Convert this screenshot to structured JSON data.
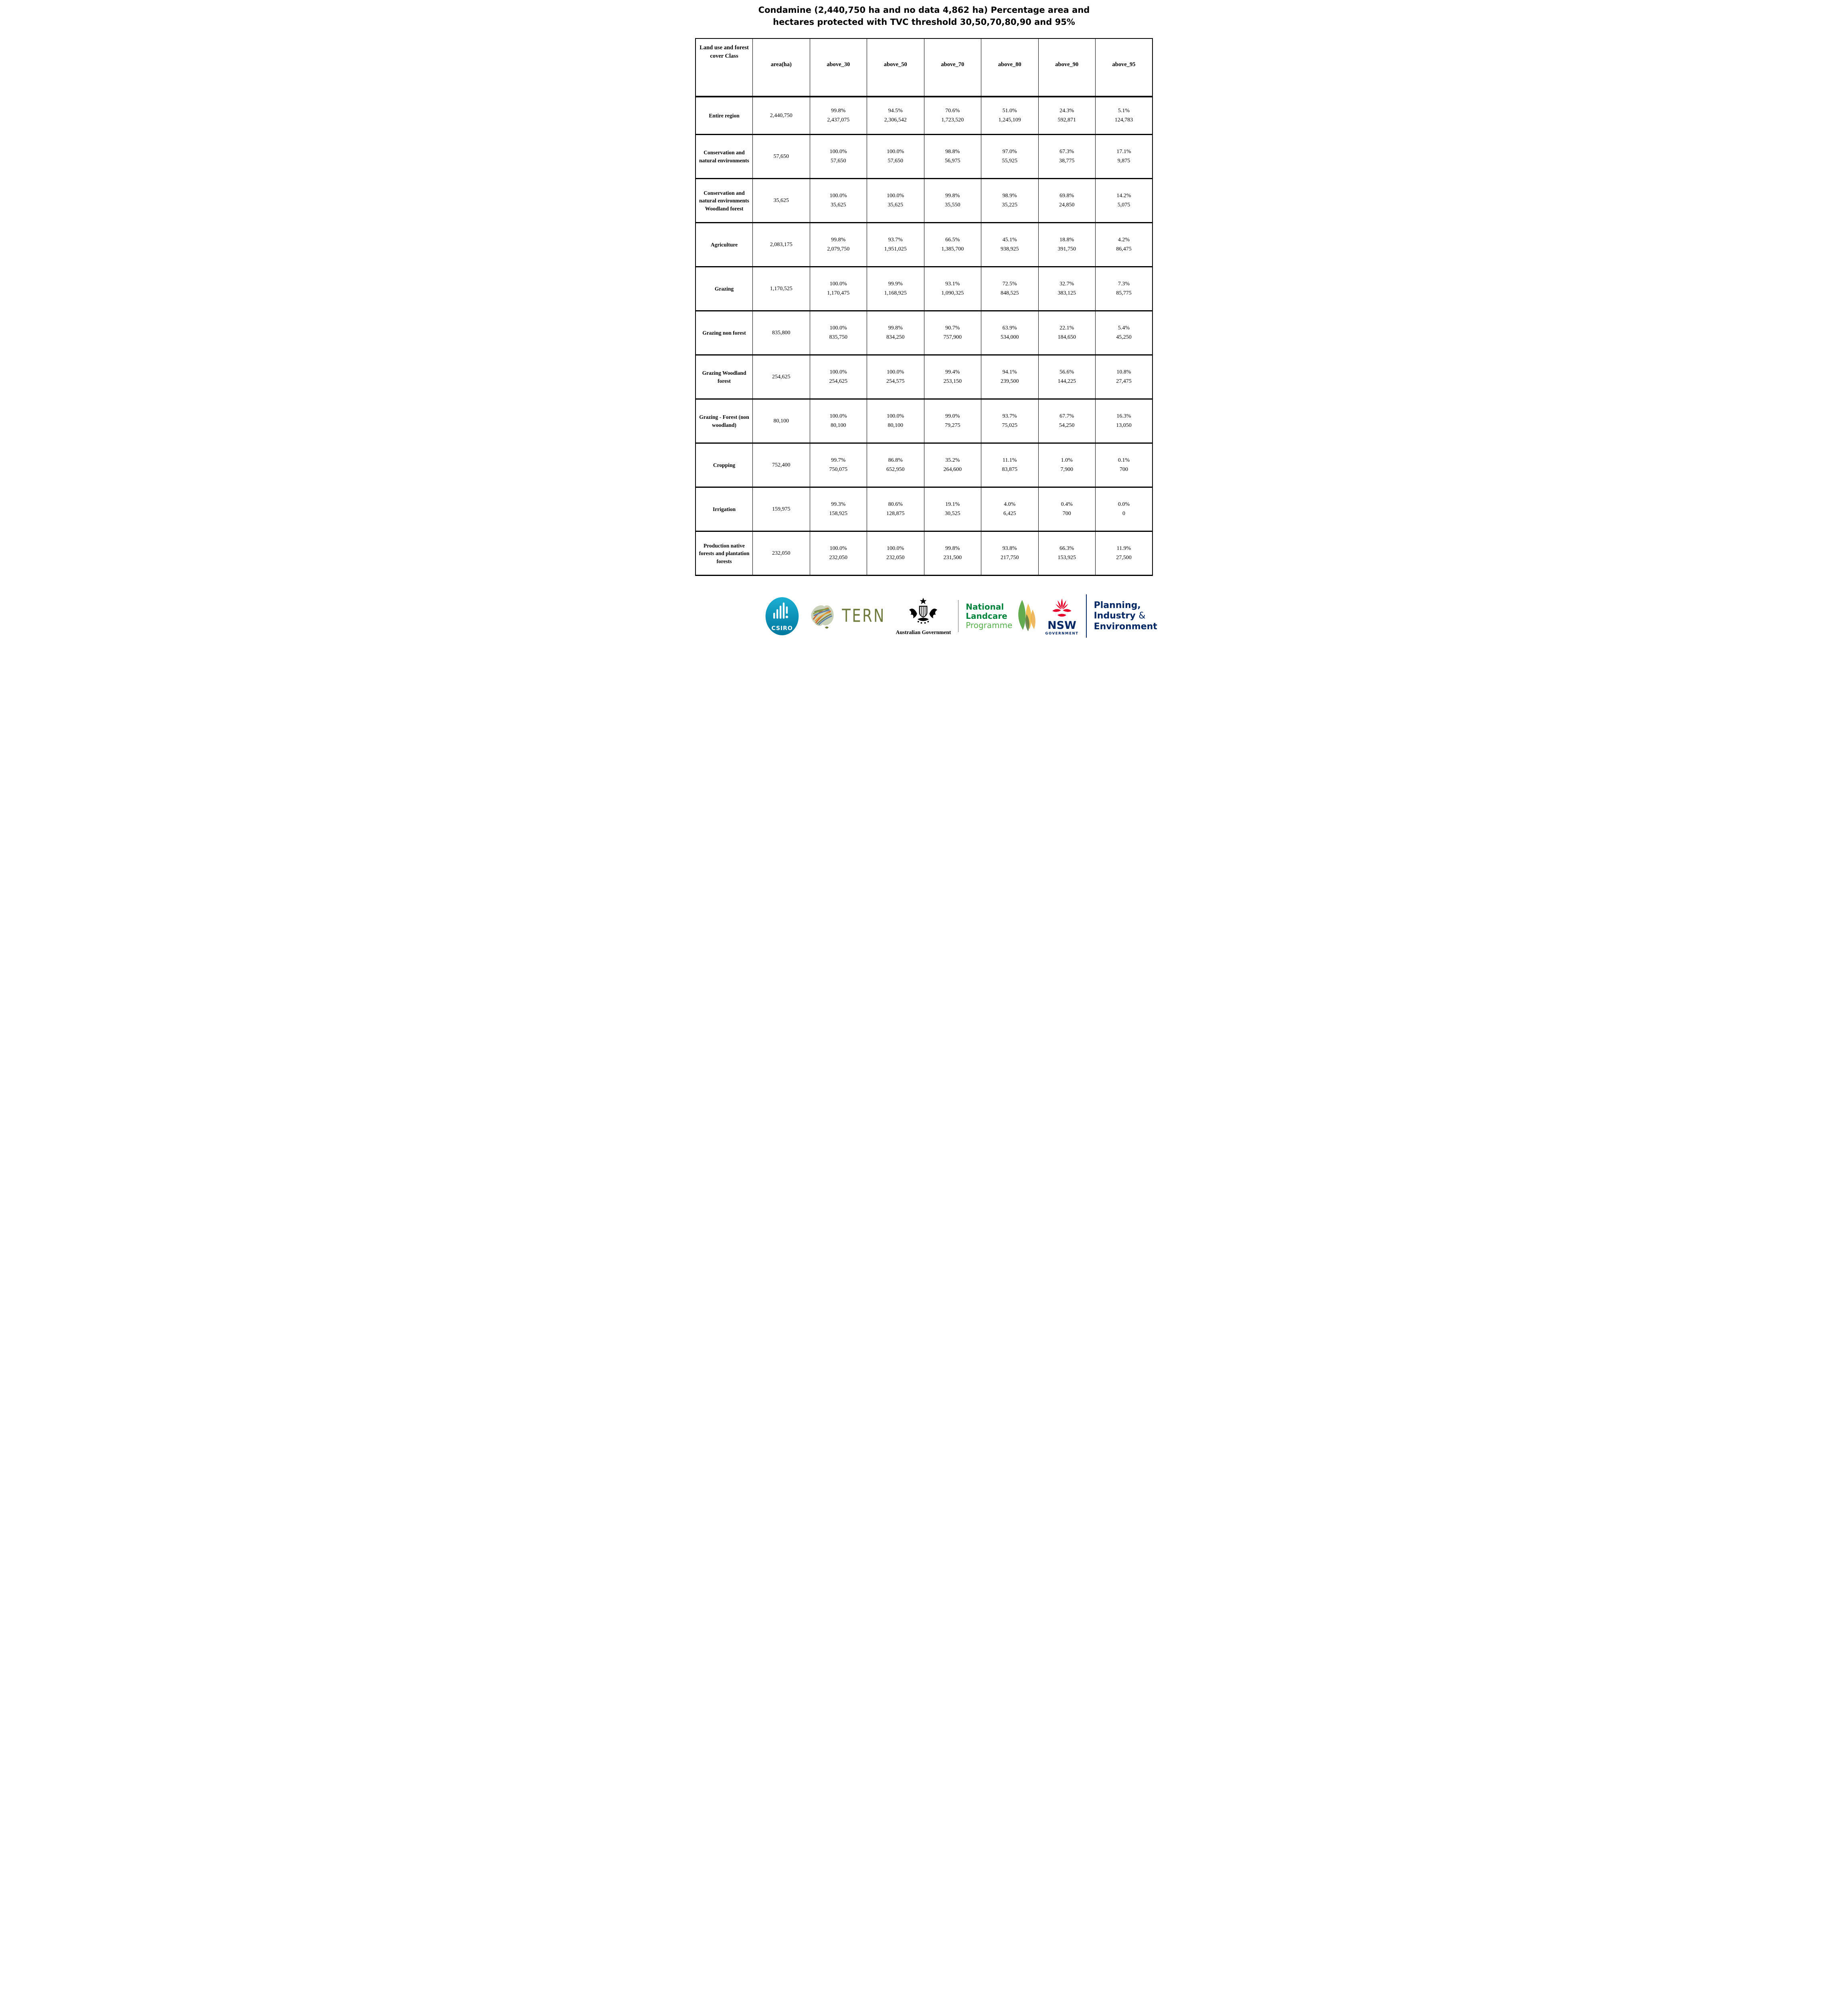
{
  "title": {
    "line1": "Condamine (2,440,750 ha and no data 4,862 ha) Percentage area and",
    "line2": "hectares protected with TVC threshold 30,50,70,80,90 and 95%"
  },
  "table": {
    "columns": [
      "Land use and forest cover Class",
      "area(ha)",
      "above_30",
      "above_50",
      "above_70",
      "above_80",
      "above_90",
      "above_95"
    ],
    "rows": [
      {
        "label": "Entire region",
        "area": "2,440,750",
        "cells": [
          [
            "99.8%",
            "2,437,075"
          ],
          [
            "94.5%",
            "2,306,542"
          ],
          [
            "70.6%",
            "1,723,520"
          ],
          [
            "51.0%",
            "1,245,109"
          ],
          [
            "24.3%",
            "592,871"
          ],
          [
            "5.1%",
            "124,783"
          ]
        ]
      },
      {
        "label": "Conservation and natural environments",
        "area": "57,650",
        "cells": [
          [
            "100.0%",
            "57,650"
          ],
          [
            "100.0%",
            "57,650"
          ],
          [
            "98.8%",
            "56,975"
          ],
          [
            "97.0%",
            "55,925"
          ],
          [
            "67.3%",
            "38,775"
          ],
          [
            "17.1%",
            "9,875"
          ]
        ]
      },
      {
        "label": "Conservation and natural environments Woodland forest",
        "area": "35,625",
        "cells": [
          [
            "100.0%",
            "35,625"
          ],
          [
            "100.0%",
            "35,625"
          ],
          [
            "99.8%",
            "35,550"
          ],
          [
            "98.9%",
            "35,225"
          ],
          [
            "69.8%",
            "24,850"
          ],
          [
            "14.2%",
            "5,075"
          ]
        ]
      },
      {
        "label": "Agriculture",
        "area": "2,083,175",
        "cells": [
          [
            "99.8%",
            "2,079,750"
          ],
          [
            "93.7%",
            "1,951,025"
          ],
          [
            "66.5%",
            "1,385,700"
          ],
          [
            "45.1%",
            "938,925"
          ],
          [
            "18.8%",
            "391,750"
          ],
          [
            "4.2%",
            "86,475"
          ]
        ]
      },
      {
        "label": "Grazing",
        "area": "1,170,525",
        "cells": [
          [
            "100.0%",
            "1,170,475"
          ],
          [
            "99.9%",
            "1,168,925"
          ],
          [
            "93.1%",
            "1,090,325"
          ],
          [
            "72.5%",
            "848,525"
          ],
          [
            "32.7%",
            "383,125"
          ],
          [
            "7.3%",
            "85,775"
          ]
        ]
      },
      {
        "label": "Grazing non forest",
        "area": "835,800",
        "cells": [
          [
            "100.0%",
            "835,750"
          ],
          [
            "99.8%",
            "834,250"
          ],
          [
            "90.7%",
            "757,900"
          ],
          [
            "63.9%",
            "534,000"
          ],
          [
            "22.1%",
            "184,650"
          ],
          [
            "5.4%",
            "45,250"
          ]
        ]
      },
      {
        "label": "Grazing Woodland forest",
        "area": "254,625",
        "cells": [
          [
            "100.0%",
            "254,625"
          ],
          [
            "100.0%",
            "254,575"
          ],
          [
            "99.4%",
            "253,150"
          ],
          [
            "94.1%",
            "239,500"
          ],
          [
            "56.6%",
            "144,225"
          ],
          [
            "10.8%",
            "27,475"
          ]
        ]
      },
      {
        "label": "Grazing - Forest (non woodland)",
        "area": "80,100",
        "cells": [
          [
            "100.0%",
            "80,100"
          ],
          [
            "100.0%",
            "80,100"
          ],
          [
            "99.0%",
            "79,275"
          ],
          [
            "93.7%",
            "75,025"
          ],
          [
            "67.7%",
            "54,250"
          ],
          [
            "16.3%",
            "13,050"
          ]
        ]
      },
      {
        "label": "Cropping",
        "area": "752,400",
        "cells": [
          [
            "99.7%",
            "750,075"
          ],
          [
            "86.8%",
            "652,950"
          ],
          [
            "35.2%",
            "264,600"
          ],
          [
            "11.1%",
            "83,875"
          ],
          [
            "1.0%",
            "7,900"
          ],
          [
            "0.1%",
            "700"
          ]
        ]
      },
      {
        "label": "Irrigation",
        "area": "159,975",
        "cells": [
          [
            "99.3%",
            "158,925"
          ],
          [
            "80.6%",
            "128,875"
          ],
          [
            "19.1%",
            "30,525"
          ],
          [
            "4.0%",
            "6,425"
          ],
          [
            "0.4%",
            "700"
          ],
          [
            "0.0%",
            "0"
          ]
        ]
      },
      {
        "label": "Production native forests and plantation forests",
        "area": "232,050",
        "cells": [
          [
            "100.0%",
            "232,050"
          ],
          [
            "100.0%",
            "232,050"
          ],
          [
            "99.8%",
            "231,500"
          ],
          [
            "93.8%",
            "217,750"
          ],
          [
            "66.3%",
            "153,925"
          ],
          [
            "11.9%",
            "27,500"
          ]
        ]
      }
    ]
  },
  "footer": {
    "csiro": "CSIRO",
    "tern": "TERN",
    "ausgov": "Australian Government",
    "landcare_line1": "National",
    "landcare_line2": "Landcare",
    "landcare_line3": "Programme",
    "nsw": "NSW",
    "nsw_gov": "GOVERNMENT",
    "dept_line1": "Planning,",
    "dept_line2": "Industry",
    "dept_amp": "&",
    "dept_line3": "Environment"
  },
  "colors": {
    "csiro_teal": "#0b9dc4",
    "tern_olive": "#6f7a3d",
    "landcare_green": "#00843d",
    "landcare_light_green": "#56b04b",
    "nsw_navy": "#002664",
    "waratah_red": "#e4002b"
  }
}
